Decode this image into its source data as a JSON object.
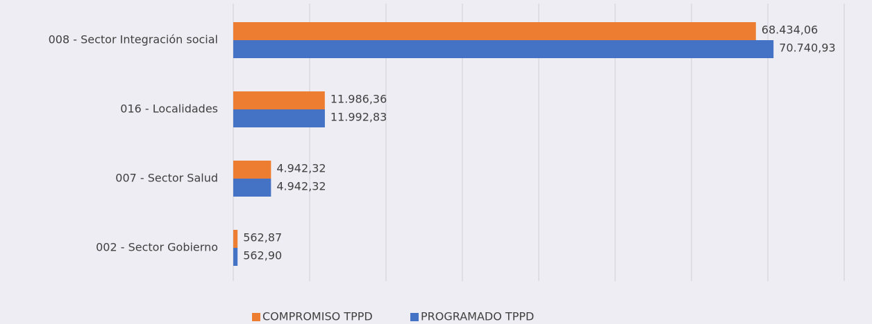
{
  "chart_data": {
    "type": "bar",
    "orientation": "horizontal",
    "categories": [
      "008 - Sector Integración social",
      "016 - Localidades",
      "007 - Sector Salud",
      "002 - Sector Gobierno"
    ],
    "series": [
      {
        "name": "COMPROMISO TPPD",
        "color": "#ed7d31",
        "values": [
          68434.06,
          11986.36,
          4942.32,
          562.87
        ],
        "value_labels": [
          "68.434,06",
          "11.986,36",
          "4.942,32",
          "562,87"
        ]
      },
      {
        "name": "PROGRAMADO TPPD",
        "color": "#4472c4",
        "values": [
          70740.93,
          11992.83,
          4942.32,
          562.9
        ],
        "value_labels": [
          "70.740,93",
          "11.992,83",
          "4.942,32",
          "562,90"
        ]
      }
    ],
    "xlim": [
      0,
      80000
    ],
    "xticks": [
      0,
      10000,
      20000,
      30000,
      40000,
      50000,
      60000,
      70000,
      80000
    ],
    "grid": true,
    "legend": "bottom"
  }
}
